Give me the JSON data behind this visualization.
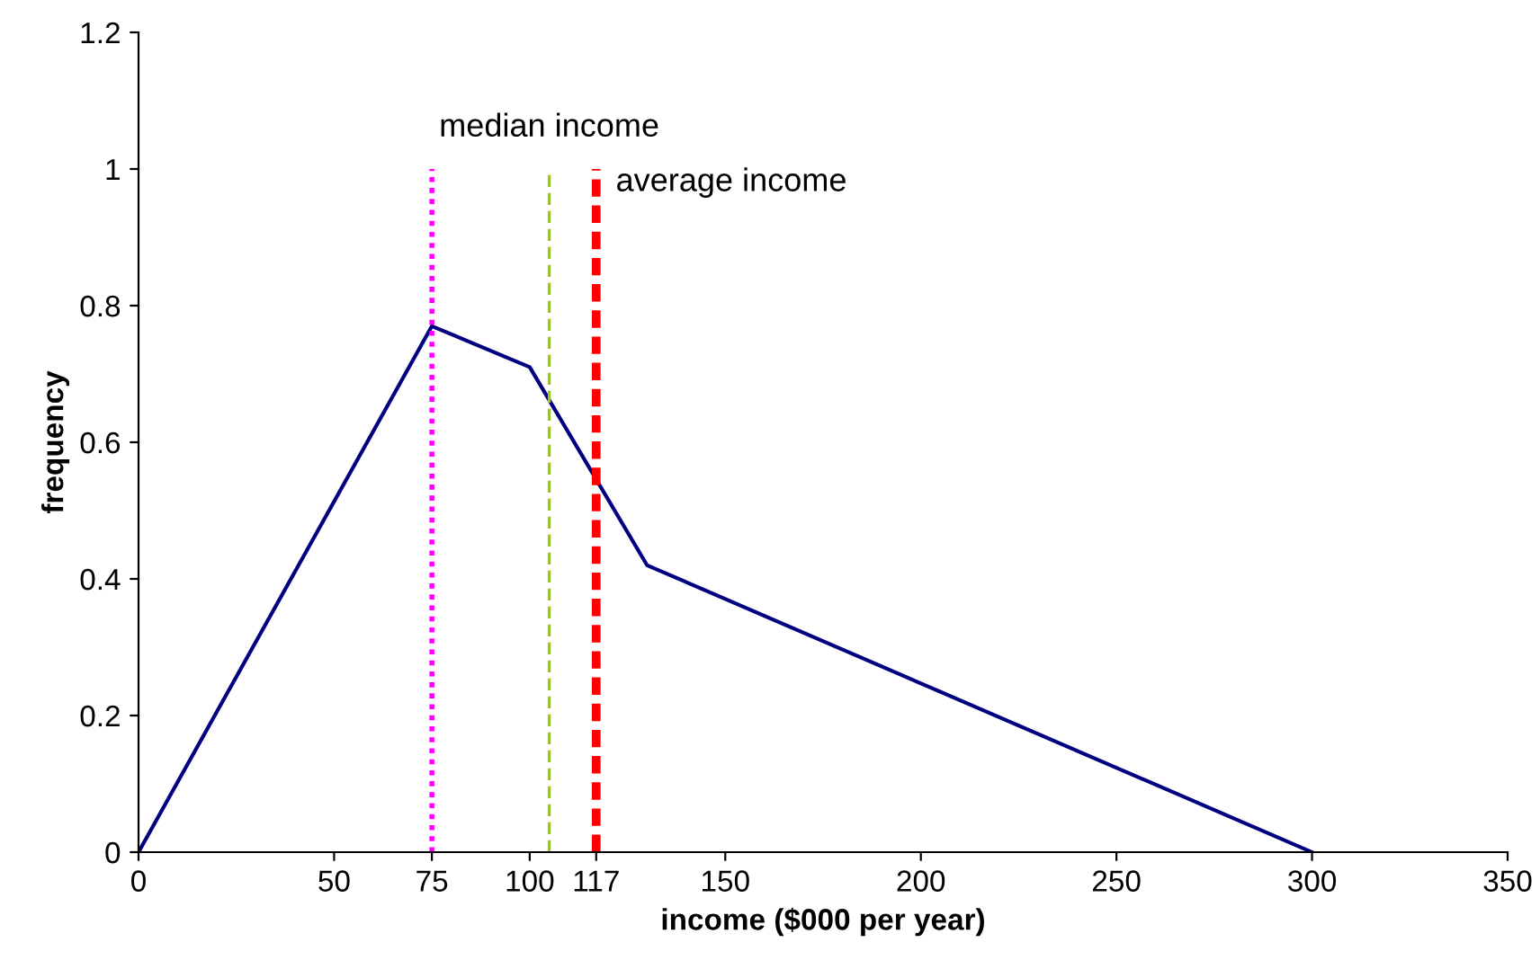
{
  "chart_data": {
    "type": "line",
    "xlabel": "income ($000 per year)",
    "ylabel": "frequency",
    "x": [
      0,
      75,
      100,
      130,
      300
    ],
    "series": [
      {
        "color": "#000080",
        "values": [
          0,
          0.77,
          0.71,
          0.42,
          0
        ]
      }
    ],
    "xlim": [
      0,
      350
    ],
    "xticks": [
      0,
      50,
      75,
      100,
      117,
      150,
      200,
      250,
      300,
      350
    ],
    "ylim": [
      0,
      1.2
    ],
    "yticks": [
      0,
      0.2,
      0.4,
      0.6,
      0.8,
      1,
      1.2
    ],
    "ref_lines": [
      {
        "axis": "x",
        "value": 75,
        "color": "#ff00ff",
        "line_style": "dotted"
      },
      {
        "axis": "x",
        "value": 105,
        "color": "#99cc00",
        "line_style": "dashed",
        "label": "median income"
      },
      {
        "axis": "x",
        "value": 117,
        "color": "#ff0000",
        "line_style": "dashed",
        "label": "average income"
      }
    ],
    "grid": false,
    "marker": "none",
    "line_style": "solid"
  }
}
